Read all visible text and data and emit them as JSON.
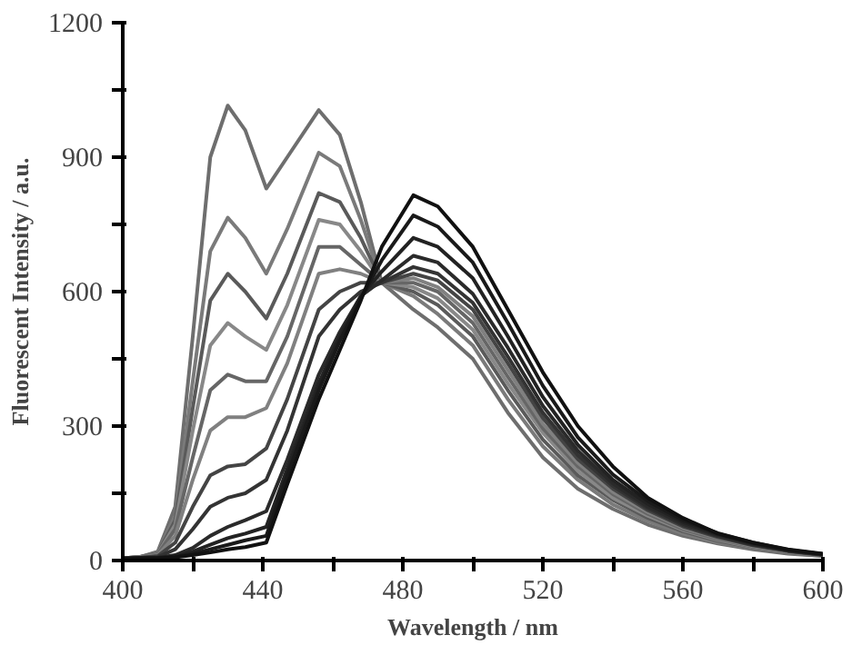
{
  "chart_data": {
    "type": "line",
    "xlabel": "Wavelength / nm",
    "ylabel": "Fluorescent Intensity / a.u.",
    "x": [
      400,
      405,
      410,
      415,
      420,
      425,
      430,
      435,
      441,
      447,
      456,
      462,
      468,
      474,
      483,
      490,
      500,
      510,
      520,
      530,
      540,
      550,
      560,
      570,
      580,
      590,
      600
    ],
    "series": [
      {
        "color": "#6e6e6e",
        "values": [
          5,
          8,
          20,
          120,
          500,
          900,
          1015,
          960,
          830,
          900,
          1005,
          950,
          800,
          620,
          560,
          520,
          450,
          330,
          230,
          160,
          115,
          80,
          55,
          38,
          25,
          15,
          10
        ]
      },
      {
        "color": "#7a7a7a",
        "values": [
          5,
          8,
          18,
          100,
          400,
          690,
          765,
          720,
          640,
          740,
          910,
          880,
          760,
          620,
          590,
          550,
          480,
          360,
          255,
          180,
          125,
          88,
          60,
          40,
          27,
          17,
          10
        ]
      },
      {
        "color": "#5a5a5a",
        "values": [
          5,
          8,
          16,
          90,
          340,
          580,
          640,
          600,
          540,
          640,
          820,
          800,
          720,
          620,
          600,
          570,
          500,
          380,
          270,
          190,
          135,
          95,
          65,
          44,
          29,
          18,
          11
        ]
      },
      {
        "color": "#888888",
        "values": [
          5,
          7,
          15,
          80,
          290,
          480,
          530,
          500,
          470,
          570,
          760,
          750,
          690,
          620,
          610,
          585,
          515,
          395,
          285,
          200,
          140,
          100,
          68,
          46,
          30,
          19,
          11
        ]
      },
      {
        "color": "#666666",
        "values": [
          5,
          7,
          14,
          70,
          230,
          380,
          415,
          400,
          400,
          500,
          700,
          700,
          660,
          620,
          620,
          600,
          530,
          410,
          295,
          210,
          148,
          104,
          70,
          48,
          31,
          20,
          12
        ]
      },
      {
        "color": "#808080",
        "values": [
          5,
          7,
          12,
          55,
          180,
          290,
          320,
          320,
          340,
          440,
          640,
          650,
          640,
          620,
          630,
          610,
          545,
          425,
          305,
          218,
          153,
          108,
          73,
          50,
          32,
          20,
          12
        ]
      },
      {
        "color": "#444444",
        "values": [
          5,
          6,
          10,
          40,
          120,
          190,
          210,
          215,
          250,
          360,
          560,
          600,
          620,
          620,
          640,
          625,
          560,
          440,
          318,
          226,
          160,
          112,
          76,
          52,
          34,
          21,
          12
        ]
      },
      {
        "color": "#333333",
        "values": [
          5,
          6,
          8,
          25,
          70,
          120,
          140,
          150,
          180,
          290,
          500,
          560,
          600,
          620,
          655,
          640,
          575,
          455,
          330,
          235,
          166,
          116,
          79,
          54,
          35,
          22,
          13
        ]
      },
      {
        "color": "#2a2a2a",
        "values": [
          4,
          5,
          6,
          12,
          28,
          55,
          75,
          90,
          110,
          225,
          415,
          510,
          590,
          625,
          680,
          665,
          595,
          475,
          345,
          245,
          172,
          120,
          82,
          56,
          36,
          22,
          13
        ]
      },
      {
        "color": "#222222",
        "values": [
          4,
          5,
          6,
          10,
          20,
          35,
          50,
          60,
          75,
          205,
          395,
          500,
          590,
          645,
          720,
          700,
          630,
          500,
          365,
          258,
          180,
          126,
          86,
          58,
          38,
          23,
          14
        ]
      },
      {
        "color": "#1a1a1a",
        "values": [
          4,
          5,
          5,
          8,
          15,
          25,
          35,
          45,
          55,
          190,
          380,
          490,
          585,
          670,
          770,
          745,
          665,
          530,
          390,
          275,
          192,
          133,
          90,
          61,
          40,
          24,
          14
        ]
      },
      {
        "color": "#111111",
        "values": [
          4,
          5,
          5,
          7,
          12,
          18,
          25,
          30,
          40,
          170,
          360,
          470,
          580,
          700,
          815,
          790,
          700,
          560,
          420,
          300,
          210,
          140,
          95,
          60,
          40,
          25,
          15
        ]
      }
    ],
    "xlim": [
      400,
      600
    ],
    "xticks": [
      400,
      {
        "value": 420,
        "label": null
      },
      440,
      {
        "value": 460,
        "label": null
      },
      480,
      {
        "value": 500,
        "label": null
      },
      520,
      {
        "value": 540,
        "label": null
      },
      560,
      {
        "value": 580,
        "label": null
      },
      600
    ],
    "ylim": [
      0,
      1200
    ],
    "yticks": [
      0,
      {
        "value": 150,
        "label": null
      },
      300,
      {
        "value": 450,
        "label": null
      },
      600,
      {
        "value": 750,
        "label": null
      },
      900,
      {
        "value": 1050,
        "label": null
      },
      1200
    ],
    "grid": false,
    "marker": "none",
    "line_style": "solid"
  }
}
